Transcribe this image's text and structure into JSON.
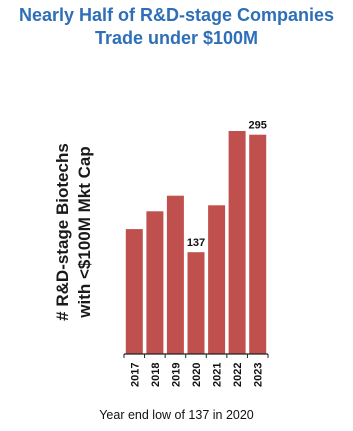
{
  "chart_data": {
    "type": "bar",
    "title_lines": [
      "Nearly Half of R&D-stage Companies",
      "Trade under $100M"
    ],
    "ylabel_lines": [
      "# R&D-stage Biotechs",
      "with  <$100M Mkt Cap"
    ],
    "xlabel": "",
    "categories": [
      "2017",
      "2018",
      "2019",
      "2020",
      "2021",
      "2022",
      "2023"
    ],
    "values": [
      168,
      192,
      213,
      137,
      200,
      300,
      295
    ],
    "data_labels": [
      {
        "category": "2020",
        "text": "137"
      },
      {
        "category": "2023",
        "text": "295"
      }
    ],
    "ylim": [
      0,
      335
    ],
    "grid": false,
    "bar_color": "#c0504d",
    "caption": "Year end low of 137 in 2020"
  }
}
